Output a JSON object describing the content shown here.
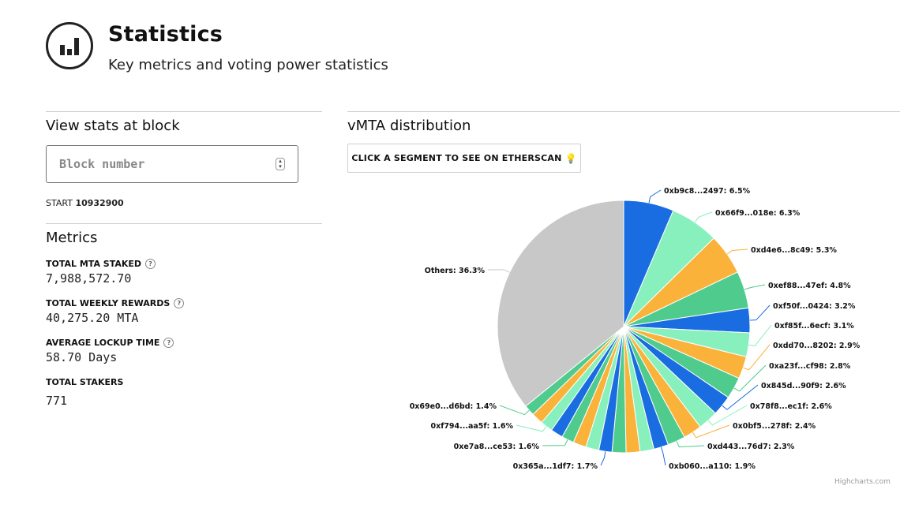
{
  "header": {
    "title": "Statistics",
    "subtitle": "Key metrics and voting power statistics",
    "icon": "bar-chart-icon"
  },
  "block": {
    "section_title": "View stats at block",
    "input_placeholder": "Block number",
    "start_label": "START",
    "start_value": "10932900"
  },
  "metrics": {
    "section_title": "Metrics",
    "items": [
      {
        "label": "TOTAL MTA STAKED",
        "value": "7,988,572.70",
        "help": true
      },
      {
        "label": "TOTAL WEEKLY REWARDS",
        "value": "40,275.20 MTA",
        "help": true
      },
      {
        "label": "AVERAGE LOCKUP TIME",
        "value": "58.70 Days",
        "help": true
      },
      {
        "label": "TOTAL STAKERS",
        "value": "771",
        "help": false
      }
    ]
  },
  "distribution": {
    "section_title": "vMTA distribution",
    "button_label": "CLICK A SEGMENT TO SEE ON ETHERSCAN",
    "button_icon": "lightbulb-icon",
    "credits": "Highcharts.com"
  },
  "chart_data": {
    "type": "pie",
    "title": "",
    "slices": [
      {
        "name": "0xb9c8...2497",
        "value": 6.5,
        "color": "#1a6de0"
      },
      {
        "name": "0x66f9...018e",
        "value": 6.3,
        "color": "#88f0bc"
      },
      {
        "name": "0xd4e6...8c49",
        "value": 5.3,
        "color": "#fbb23a"
      },
      {
        "name": "0xef88...47ef",
        "value": 4.8,
        "color": "#4fcc8d"
      },
      {
        "name": "0xf50f...0424",
        "value": 3.2,
        "color": "#1a6de0"
      },
      {
        "name": "0xf85f...6ecf",
        "value": 3.1,
        "color": "#88f0bc"
      },
      {
        "name": "0xdd70...8202",
        "value": 2.9,
        "color": "#fbb23a"
      },
      {
        "name": "0xa23f...cf98",
        "value": 2.8,
        "color": "#4fcc8d"
      },
      {
        "name": "0x845d...90f9",
        "value": 2.6,
        "color": "#1a6de0"
      },
      {
        "name": "0x78f8...ec1f",
        "value": 2.6,
        "color": "#88f0bc"
      },
      {
        "name": "0x0bf5...278f",
        "value": 2.4,
        "color": "#fbb23a"
      },
      {
        "name": "0xd443...76d7",
        "value": 2.3,
        "color": "#4fcc8d"
      },
      {
        "name": "0xb060...a110",
        "value": 1.9,
        "color": "#1a6de0"
      },
      {
        "name": "",
        "value": 1.8,
        "color": "#88f0bc"
      },
      {
        "name": "",
        "value": 1.8,
        "color": "#fbb23a"
      },
      {
        "name": "",
        "value": 1.8,
        "color": "#4fcc8d"
      },
      {
        "name": "0x365a...1df7",
        "value": 1.7,
        "color": "#1a6de0"
      },
      {
        "name": "",
        "value": 1.7,
        "color": "#88f0bc"
      },
      {
        "name": "",
        "value": 1.7,
        "color": "#fbb23a"
      },
      {
        "name": "0xe7a8...ce53",
        "value": 1.6,
        "color": "#4fcc8d"
      },
      {
        "name": "",
        "value": 1.6,
        "color": "#1a6de0"
      },
      {
        "name": "0xf794...aa5f",
        "value": 1.6,
        "color": "#88f0bc"
      },
      {
        "name": "",
        "value": 1.5,
        "color": "#fbb23a"
      },
      {
        "name": "0x69e0...d6bd",
        "value": 1.4,
        "color": "#4fcc8d"
      },
      {
        "name": "Others",
        "value": 36.3,
        "color": "#c8c8c8"
      }
    ],
    "labels_shown": [
      "0xb9c8...2497: 6.5%",
      "0x66f9...018e: 6.3%",
      "0xd4e6...8c49: 5.3%",
      "0xef88...47ef: 4.8%",
      "0xf50f...0424: 3.2%",
      "0xf85f...6ecf: 3.1%",
      "0xdd70...8202: 2.9%",
      "0xa23f...cf98: 2.8%",
      "0x845d...90f9: 2.6%",
      "0x78f8...ec1f: 2.6%",
      "0x0bf5...278f: 2.4%",
      "0xd443...76d7: 2.3%",
      "0xb060...a110: 1.9%",
      "0x365a...1df7: 1.7%",
      "0xe7a8...ce53: 1.6%",
      "0xf794...aa5f: 1.6%",
      "0x69e0...d6bd: 1.4%",
      "Others: 36.3%"
    ]
  }
}
